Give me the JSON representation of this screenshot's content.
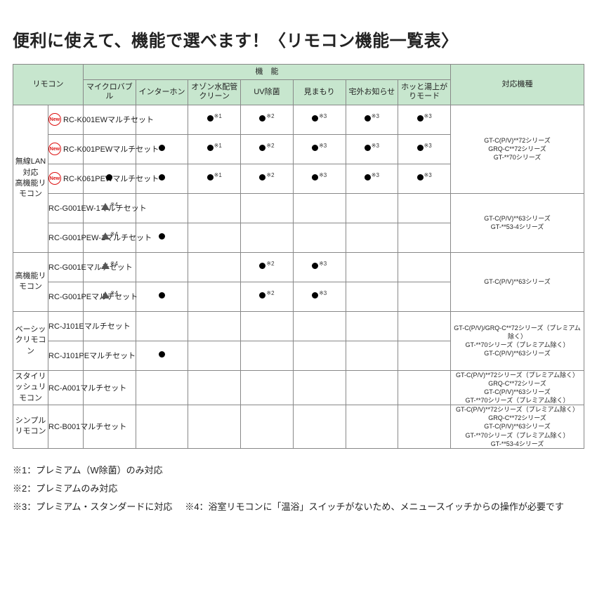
{
  "title": "便利に使えて、機能で選べます！〈リモコン機能一覧表〉",
  "headers": {
    "remocon": "リモコン",
    "func_group": "機　能",
    "compat": "対応機種",
    "funcs": [
      "マイクロバブル",
      "インターホン",
      "オゾン水配管クリーン",
      "UV除菌",
      "見まもり",
      "宅外お知らせ",
      "ホッと湯上がりモード"
    ]
  },
  "categories": [
    {
      "name": "無線LAN対応\n高機能リモコン",
      "rows": [
        {
          "new": true,
          "model": "RC-K001EWマルチセット",
          "f": [
            "",
            "",
            "d1",
            "d2",
            "d3",
            "d3",
            "d3"
          ]
        },
        {
          "new": true,
          "model": "RC-K001PEWマルチセット",
          "f": [
            "",
            "d",
            "d1",
            "d2",
            "d3",
            "d3",
            "d3"
          ]
        },
        {
          "new": true,
          "model": "RC-K061PEWマルチセット",
          "f": [
            "d",
            "d",
            "d1",
            "d2",
            "d3",
            "d3",
            "d3"
          ]
        },
        {
          "new": false,
          "model": "RC-G001EW-1マルチセット",
          "f": [
            "t4",
            "",
            "",
            "",
            "",
            "",
            ""
          ]
        },
        {
          "new": false,
          "model": "RC-G001PEW-1マルチセット",
          "f": [
            "t4",
            "d",
            "",
            "",
            "",
            "",
            ""
          ]
        }
      ],
      "compat_groups": [
        {
          "span": 3,
          "text": "GT-C(P/V)**72シリーズ\nGRQ-C**72シリーズ\nGT-**70シリーズ"
        },
        {
          "span": 2,
          "text": "GT-C(P/V)**63シリーズ\nGT-**53-4シリーズ"
        }
      ]
    },
    {
      "name": "高機能リモコン",
      "rows": [
        {
          "new": false,
          "model": "RC-G001Eマルチセット",
          "f": [
            "t4",
            "",
            "",
            "d2",
            "d3",
            "",
            ""
          ]
        },
        {
          "new": false,
          "model": "RC-G001PEマルチセット",
          "f": [
            "t4",
            "d",
            "",
            "d2",
            "d3",
            "",
            ""
          ]
        }
      ],
      "compat_groups": [
        {
          "span": 2,
          "text": "GT-C(P/V)**63シリーズ"
        }
      ]
    },
    {
      "name": "ベーシックリモコン",
      "rows": [
        {
          "new": false,
          "model": "RC-J101Eマルチセット",
          "f": [
            "",
            "",
            "",
            "",
            "",
            "",
            ""
          ]
        },
        {
          "new": false,
          "model": "RC-J101PEマルチセット",
          "f": [
            "",
            "d",
            "",
            "",
            "",
            "",
            ""
          ]
        }
      ],
      "compat_groups": [
        {
          "span": 2,
          "text": "GT-C(P/V)/GRQ-C**72シリーズ（プレミアム除く）\nGT-**70シリーズ（プレミアム除く）\nGT-C(P/V)**63シリーズ"
        }
      ]
    },
    {
      "name": "スタイリッシュリモコン",
      "rows": [
        {
          "new": false,
          "model": "RC-A001マルチセット",
          "f": [
            "",
            "",
            "",
            "",
            "",
            "",
            ""
          ]
        }
      ],
      "compat_groups": [
        {
          "span": 1,
          "text": "GT-C(P/V)**72シリーズ（プレミアム除く）\nGRQ-C**72シリーズ\nGT-C(P/V)**63シリーズ\nGT-**70シリーズ（プレミアム除く）"
        }
      ]
    },
    {
      "name": "シンプルリモコン",
      "rows": [
        {
          "new": false,
          "model": "RC-B001マルチセット",
          "f": [
            "",
            "",
            "",
            "",
            "",
            "",
            ""
          ]
        }
      ],
      "compat_groups": [
        {
          "span": 1,
          "text": "GT-C(P/V)**72シリーズ（プレミアム除く）\nGRQ-C**72シリーズ\nGT-C(P/V)**63シリーズ\nGT-**70シリーズ（プレミアム除く）\nGT-**53-4シリーズ"
        }
      ]
    }
  ],
  "marks": {
    "d": {
      "shape": "dot",
      "note": ""
    },
    "d1": {
      "shape": "dot",
      "note": "※1"
    },
    "d2": {
      "shape": "dot",
      "note": "※2"
    },
    "d3": {
      "shape": "dot",
      "note": "※3"
    },
    "t4": {
      "shape": "tri",
      "note": "※4"
    }
  },
  "footnotes": {
    "n1": "※1：プレミアム（W除菌）のみ対応",
    "n2": "※2：プレミアムのみ対応",
    "n3": "※3：プレミアム・スタンダードに対応",
    "n4": "※4：浴室リモコンに「温浴」スイッチがないため、メニュースイッチからの操作が必要です"
  },
  "labels": {
    "new": "New"
  }
}
